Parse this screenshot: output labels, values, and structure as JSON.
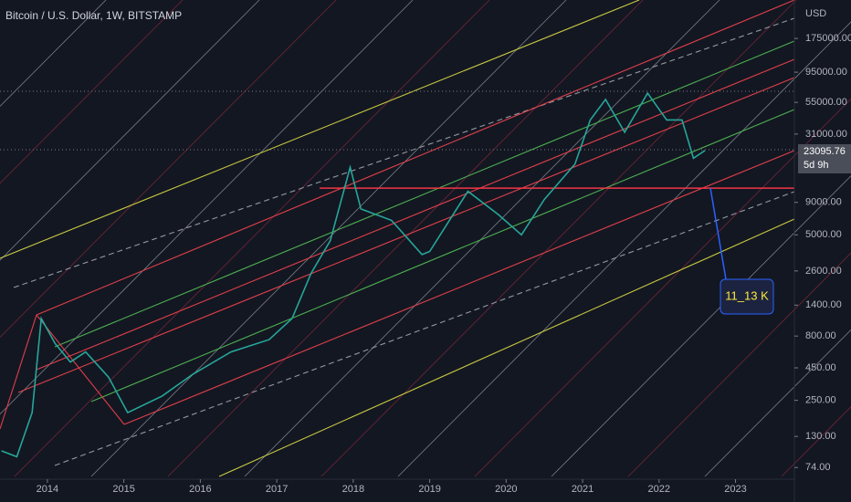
{
  "chart_data": {
    "type": "line",
    "title": "Bitcoin / U.S. Dollar, 1W, BITSTAMP",
    "y_axis_label": "USD",
    "x": [
      2013.4,
      2013.6,
      2013.8,
      2013.92,
      2014.1,
      2014.3,
      2014.5,
      2014.8,
      2015.05,
      2015.5,
      2015.9,
      2016.4,
      2016.9,
      2017.2,
      2017.45,
      2017.7,
      2017.96,
      2018.1,
      2018.5,
      2018.9,
      2019.0,
      2019.5,
      2019.9,
      2020.2,
      2020.5,
      2020.9,
      2021.1,
      2021.3,
      2021.55,
      2021.85,
      2022.1,
      2022.3,
      2022.45,
      2022.6
    ],
    "series": [
      {
        "name": "BTCUSD",
        "color": "#26a69a",
        "values": [
          100,
          90,
          200,
          1100,
          700,
          500,
          600,
          380,
          200,
          270,
          400,
          600,
          750,
          1100,
          2500,
          4500,
          17000,
          8000,
          6500,
          3500,
          3700,
          11000,
          7200,
          5000,
          9500,
          18000,
          40000,
          58000,
          32000,
          65000,
          40000,
          40000,
          20000,
          23000
        ]
      }
    ],
    "xlim": [
      2013.38,
      2023.77
    ],
    "xticks": [
      2014,
      2015,
      2016,
      2017,
      2018,
      2019,
      2020,
      2021,
      2022,
      2023
    ],
    "ylim": [
      63,
      351000
    ],
    "log_y": true,
    "yticks": [
      {
        "value": 175000,
        "label": "175000.00"
      },
      {
        "value": 95000,
        "label": "95000.00"
      },
      {
        "value": 55000,
        "label": "55000.00"
      },
      {
        "value": 31000,
        "label": "31000.00"
      },
      {
        "value": 9000,
        "label": "9000.00"
      },
      {
        "value": 5000,
        "label": "5000.00"
      },
      {
        "value": 2600,
        "label": "2600.00"
      },
      {
        "value": 1400,
        "label": "1400.00"
      },
      {
        "value": 800,
        "label": "800.00"
      },
      {
        "value": 450,
        "label": "450.00"
      },
      {
        "value": 250,
        "label": "250.00"
      },
      {
        "value": 130,
        "label": "130.00"
      },
      {
        "value": 74,
        "label": "74.00"
      }
    ],
    "last_price": 23095.76,
    "countdown": "5d 9h",
    "support_level": 11650,
    "annotation": "11_13 K"
  }
}
